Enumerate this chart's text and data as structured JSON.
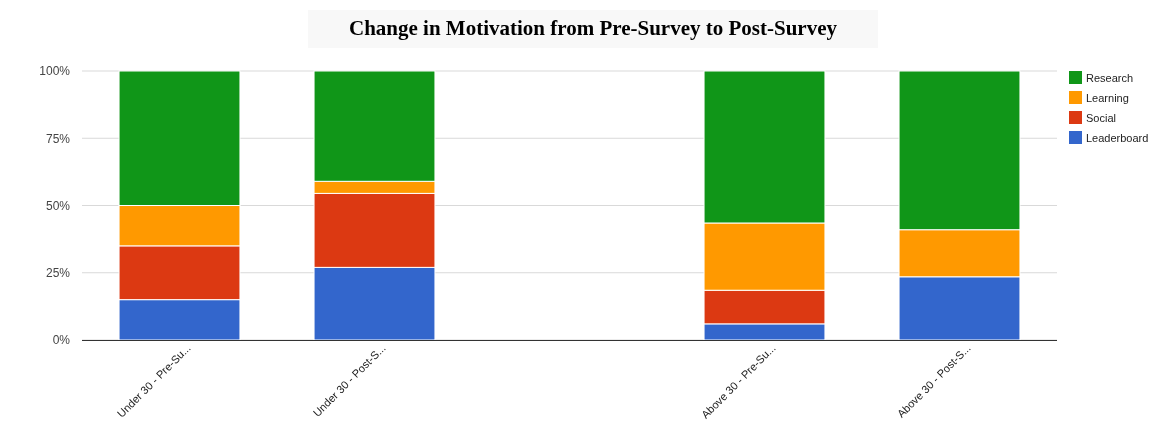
{
  "chart_data": {
    "type": "bar",
    "title": "Change in Motivation from Pre-Survey to Post-Survey",
    "stacked": true,
    "categories": [
      "Under 30 - Pre-Su...",
      "Under 30 - Post-S...",
      null,
      "Above 30 - Pre-Su...",
      "Above 30 - Post-S..."
    ],
    "series": [
      {
        "name": "Leaderboard",
        "color": "#3366cc",
        "values": [
          15,
          27,
          null,
          6,
          23.5
        ]
      },
      {
        "name": "Social",
        "color": "#dc3912",
        "values": [
          20,
          27.5,
          null,
          12.5,
          0
        ]
      },
      {
        "name": "Learning",
        "color": "#ff9900",
        "values": [
          15,
          4.5,
          null,
          25,
          17.5
        ]
      },
      {
        "name": "Research",
        "color": "#109618",
        "values": [
          50,
          41,
          null,
          56.5,
          59
        ]
      }
    ],
    "ylim": [
      0,
      100
    ],
    "yticks": [
      {
        "value": 0,
        "label": "0%"
      },
      {
        "value": 25,
        "label": "25%"
      },
      {
        "value": 50,
        "label": "50%"
      },
      {
        "value": 75,
        "label": "75%"
      },
      {
        "value": 100,
        "label": "100%"
      }
    ],
    "grid": "y",
    "legend": "top right"
  }
}
